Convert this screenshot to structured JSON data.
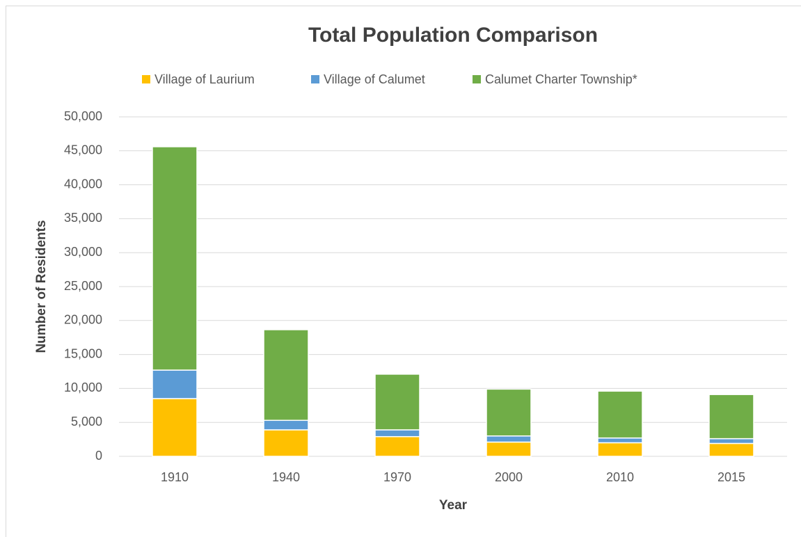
{
  "chart_data": {
    "type": "stacked_bar",
    "title": "Total Population Comparison",
    "xlabel": "Year",
    "ylabel": "Number of Residents",
    "categories": [
      "1910",
      "1940",
      "1970",
      "2000",
      "2010",
      "2015"
    ],
    "series": [
      {
        "name": "Village of Laurium",
        "color": "#FFC000",
        "values": [
          8500,
          3900,
          2900,
          2100,
          2000,
          1900
        ]
      },
      {
        "name": "Village of Calumet",
        "color": "#5B9BD5",
        "values": [
          4200,
          1400,
          1000,
          900,
          700,
          700
        ]
      },
      {
        "name": "Calumet Charter Township*",
        "color": "#70AD47",
        "values": [
          32900,
          13350,
          8200,
          6900,
          6900,
          6500
        ]
      }
    ],
    "ylim": [
      0,
      50000
    ],
    "yticks": [
      0,
      {
        "value": 5000,
        "label": "5,000"
      },
      {
        "value": 10000,
        "label": "10,000"
      },
      {
        "value": 15000,
        "label": "15,000"
      },
      {
        "value": 20000,
        "label": "20,000"
      },
      {
        "value": 25000,
        "label": "25,000"
      },
      {
        "value": 30000,
        "label": "30,000"
      },
      {
        "value": 35000,
        "label": "35,000"
      },
      {
        "value": 40000,
        "label": "40,000"
      },
      {
        "value": 45000,
        "label": "45,000"
      },
      {
        "value": 50000,
        "label": "50,000"
      }
    ],
    "grid": true,
    "legend": "top"
  }
}
